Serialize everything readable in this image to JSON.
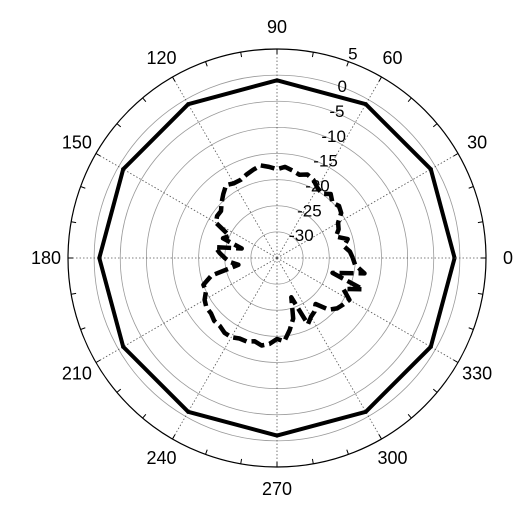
{
  "chart_data": {
    "type": "polar-line",
    "title": "",
    "radial_axis": {
      "min": -35,
      "max": 5,
      "tick_values": [
        5,
        0,
        -5,
        -10,
        -15,
        -20,
        -25,
        -30
      ],
      "tick_labels": [
        "5",
        "0",
        "-5",
        "-10",
        "-15",
        "-20",
        "-25",
        "-30"
      ]
    },
    "angular_axis": {
      "tick_values": [
        0,
        30,
        60,
        90,
        120,
        150,
        180,
        210,
        240,
        270,
        300,
        330
      ],
      "tick_labels": [
        "0",
        "30",
        "60",
        "90",
        "120",
        "150",
        "180",
        "210",
        "240",
        "270",
        "300",
        "330"
      ],
      "unit": "degrees"
    },
    "grid": true,
    "series": [
      {
        "style": "solid",
        "color": "#000000",
        "theta": [
          0,
          30,
          60,
          90,
          120,
          150,
          180,
          210,
          240,
          270,
          300,
          330,
          360
        ],
        "r": [
          -1,
          -1,
          -1,
          -1,
          -1,
          -1,
          -1,
          -1,
          -1,
          -1,
          -1,
          -1,
          -1
        ]
      },
      {
        "style": "dashed",
        "color": "#000000",
        "theta": [
          0,
          5,
          10,
          15,
          20,
          25,
          30,
          35,
          40,
          45,
          50,
          55,
          60,
          65,
          70,
          75,
          80,
          85,
          90,
          95,
          100,
          105,
          110,
          115,
          120,
          125,
          130,
          135,
          140,
          145,
          150,
          155,
          160,
          165,
          170,
          175,
          180,
          185,
          190,
          195,
          200,
          205,
          210,
          215,
          220,
          225,
          230,
          235,
          240,
          245,
          250,
          255,
          260,
          265,
          270,
          275,
          280,
          285,
          290,
          295,
          300,
          305,
          310,
          315,
          320,
          325,
          330,
          335,
          340,
          345,
          350,
          355,
          360
        ],
        "r": [
          -20.5,
          -21,
          -22,
          -21,
          -23,
          -22,
          -21.5,
          -20,
          -19.5,
          -20,
          -19,
          -20,
          -19.5,
          -18.5,
          -18,
          -18.5,
          -18,
          -17.5,
          -18,
          -17.5,
          -17,
          -17.5,
          -18,
          -18.5,
          -18.5,
          -18,
          -19,
          -20,
          -21,
          -21,
          -21.5,
          -25,
          -24,
          -28,
          -23,
          -24,
          -25,
          -26,
          -27.5,
          -22,
          -20,
          -20,
          -19,
          -18.5,
          -18.5,
          -18,
          -18,
          -17.5,
          -17.5,
          -18,
          -18,
          -18.5,
          -18,
          -18.5,
          -19.5,
          -19,
          -21,
          -23,
          -27,
          -21,
          -22,
          -22.5,
          -23.5,
          -21,
          -20,
          -19.5,
          -19,
          -21,
          -17.5,
          -24,
          -18,
          -20,
          -20.5
        ]
      }
    ]
  }
}
